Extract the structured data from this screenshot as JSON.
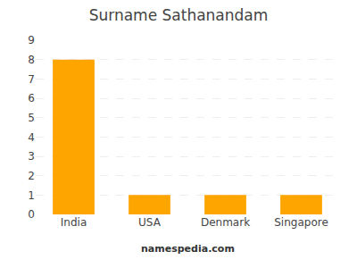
{
  "chart_data": {
    "type": "bar",
    "title": "Surname Sathanandam",
    "categories": [
      "India",
      "USA",
      "Denmark",
      "Singapore"
    ],
    "values": [
      8,
      1,
      1,
      1
    ],
    "color": "#FFA500",
    "ylim": [
      0,
      9
    ],
    "yticks": [
      0,
      1,
      2,
      3,
      4,
      5,
      6,
      7,
      8,
      9
    ],
    "grid": true,
    "annotations": [
      "namespedia.com"
    ]
  }
}
